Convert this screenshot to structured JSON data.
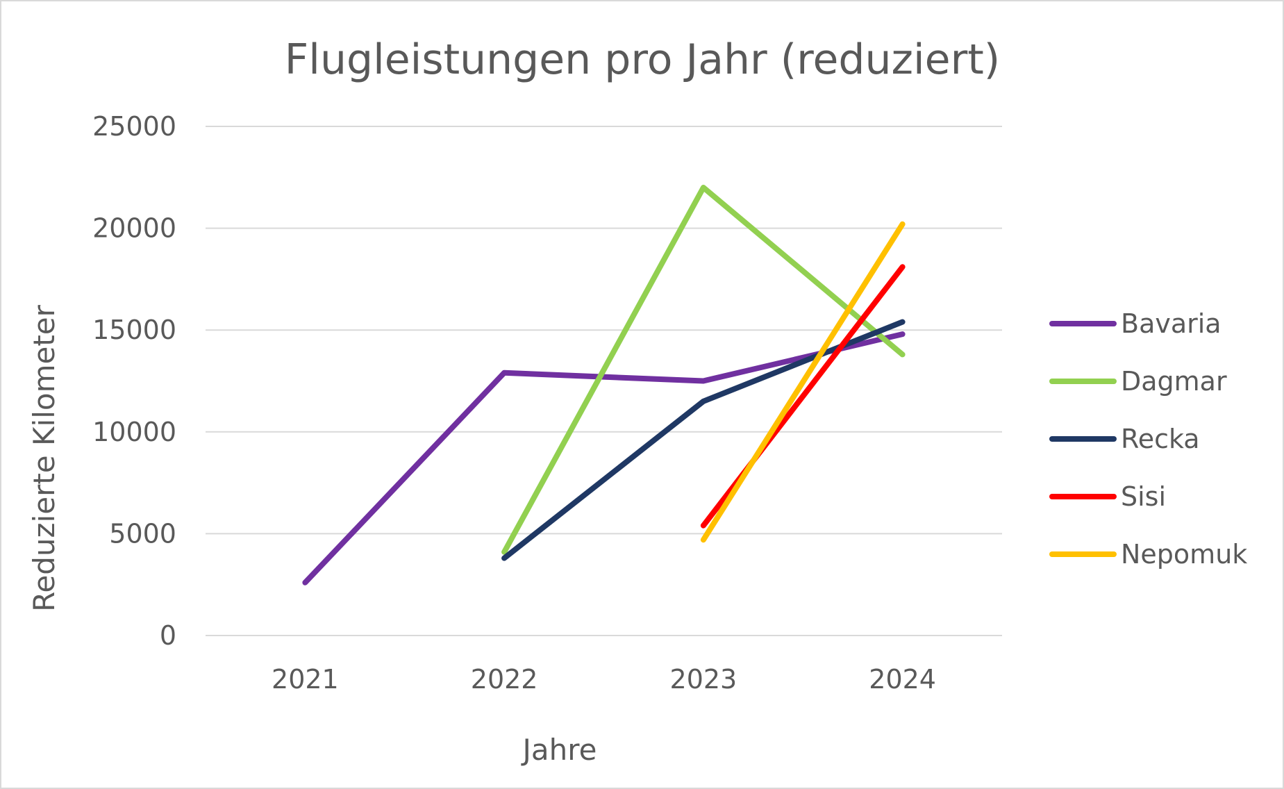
{
  "chart_data": {
    "type": "line",
    "title": "Flugleistungen pro Jahr (reduziert)",
    "xlabel": "Jahre",
    "ylabel": "Reduzierte Kilometer",
    "categories": [
      "2021",
      "2022",
      "2023",
      "2024"
    ],
    "ylim": [
      0,
      25000
    ],
    "yticks": [
      0,
      5000,
      10000,
      15000,
      20000,
      25000
    ],
    "ytick_labels": [
      "0",
      "5000",
      "10000",
      "15000",
      "20000",
      "25000"
    ],
    "grid": true,
    "legend_position": "right",
    "series": [
      {
        "name": "Bavaria",
        "color": "#7030a0",
        "values": [
          2600,
          12900,
          12500,
          14800
        ]
      },
      {
        "name": "Dagmar",
        "color": "#92d050",
        "values": [
          null,
          4100,
          22000,
          13800
        ]
      },
      {
        "name": "Recka",
        "color": "#1f3864",
        "values": [
          null,
          3800,
          11500,
          15400
        ]
      },
      {
        "name": "Sisi",
        "color": "#ff0000",
        "values": [
          null,
          null,
          5400,
          18100
        ]
      },
      {
        "name": "Nepomuk",
        "color": "#ffc000",
        "values": [
          null,
          null,
          4700,
          20200
        ]
      }
    ]
  }
}
